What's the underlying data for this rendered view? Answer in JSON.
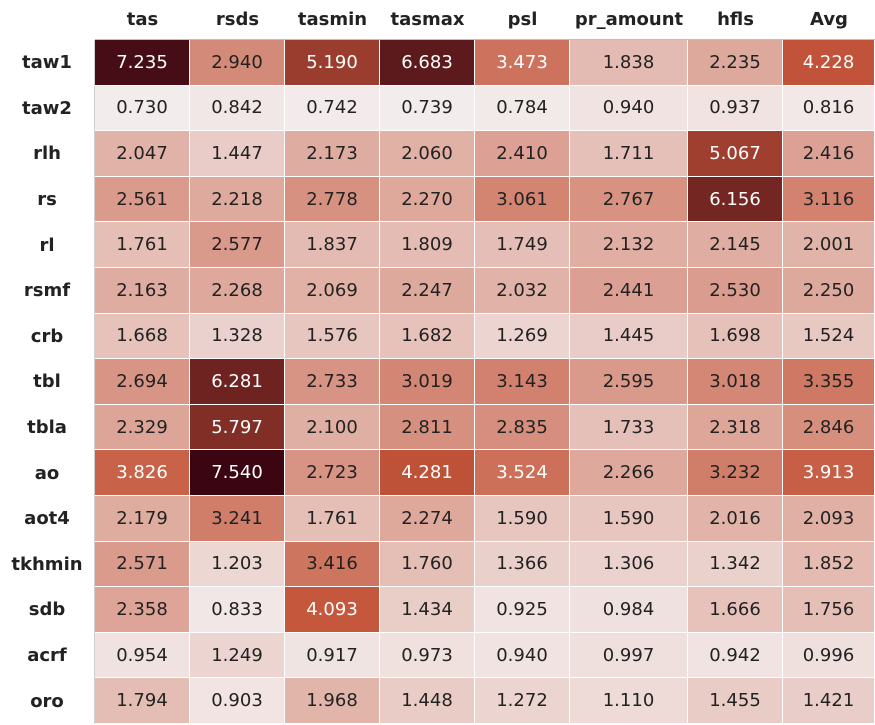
{
  "chart_data": {
    "type": "heatmap",
    "columns": [
      "tas",
      "rsds",
      "tasmin",
      "tasmax",
      "psl",
      "pr_amount",
      "hfls",
      "Avg"
    ],
    "rows": [
      "taw1",
      "taw2",
      "rlh",
      "rs",
      "rl",
      "rsmf",
      "crb",
      "tbl",
      "tbla",
      "ao",
      "aot4",
      "tkhmin",
      "sdb",
      "acrf",
      "oro"
    ],
    "values": [
      [
        7.235,
        2.94,
        5.19,
        6.683,
        3.473,
        1.838,
        2.235,
        4.228
      ],
      [
        0.73,
        0.842,
        0.742,
        0.739,
        0.784,
        0.94,
        0.937,
        0.816
      ],
      [
        2.047,
        1.447,
        2.173,
        2.06,
        2.41,
        1.711,
        5.067,
        2.416
      ],
      [
        2.561,
        2.218,
        2.778,
        2.27,
        3.061,
        2.767,
        6.156,
        3.116
      ],
      [
        1.761,
        2.577,
        1.837,
        1.809,
        1.749,
        2.132,
        2.145,
        2.001
      ],
      [
        2.163,
        2.268,
        2.069,
        2.247,
        2.032,
        2.441,
        2.53,
        2.25
      ],
      [
        1.668,
        1.328,
        1.576,
        1.682,
        1.269,
        1.445,
        1.698,
        1.524
      ],
      [
        2.694,
        6.281,
        2.733,
        3.019,
        3.143,
        2.595,
        3.018,
        3.355
      ],
      [
        2.329,
        5.797,
        2.1,
        2.811,
        2.835,
        1.733,
        2.318,
        2.846
      ],
      [
        3.826,
        7.54,
        2.723,
        4.281,
        3.524,
        2.266,
        3.232,
        3.913
      ],
      [
        2.179,
        3.241,
        1.761,
        2.274,
        1.59,
        1.59,
        2.016,
        2.093
      ],
      [
        2.571,
        1.203,
        3.416,
        1.76,
        1.366,
        1.306,
        1.342,
        1.852
      ],
      [
        2.358,
        0.833,
        4.093,
        1.434,
        0.925,
        0.984,
        1.666,
        1.756
      ],
      [
        0.954,
        1.249,
        0.917,
        0.973,
        0.94,
        0.997,
        0.942,
        0.996
      ],
      [
        1.794,
        0.903,
        1.968,
        1.448,
        1.272,
        1.11,
        1.455,
        1.421
      ]
    ],
    "value_format": "0.000",
    "color_scale": {
      "min": 0.73,
      "max": 7.54,
      "low_color": "#f3ecec",
      "high_color": "#3b0612",
      "mid_color": "#c4553a"
    }
  }
}
